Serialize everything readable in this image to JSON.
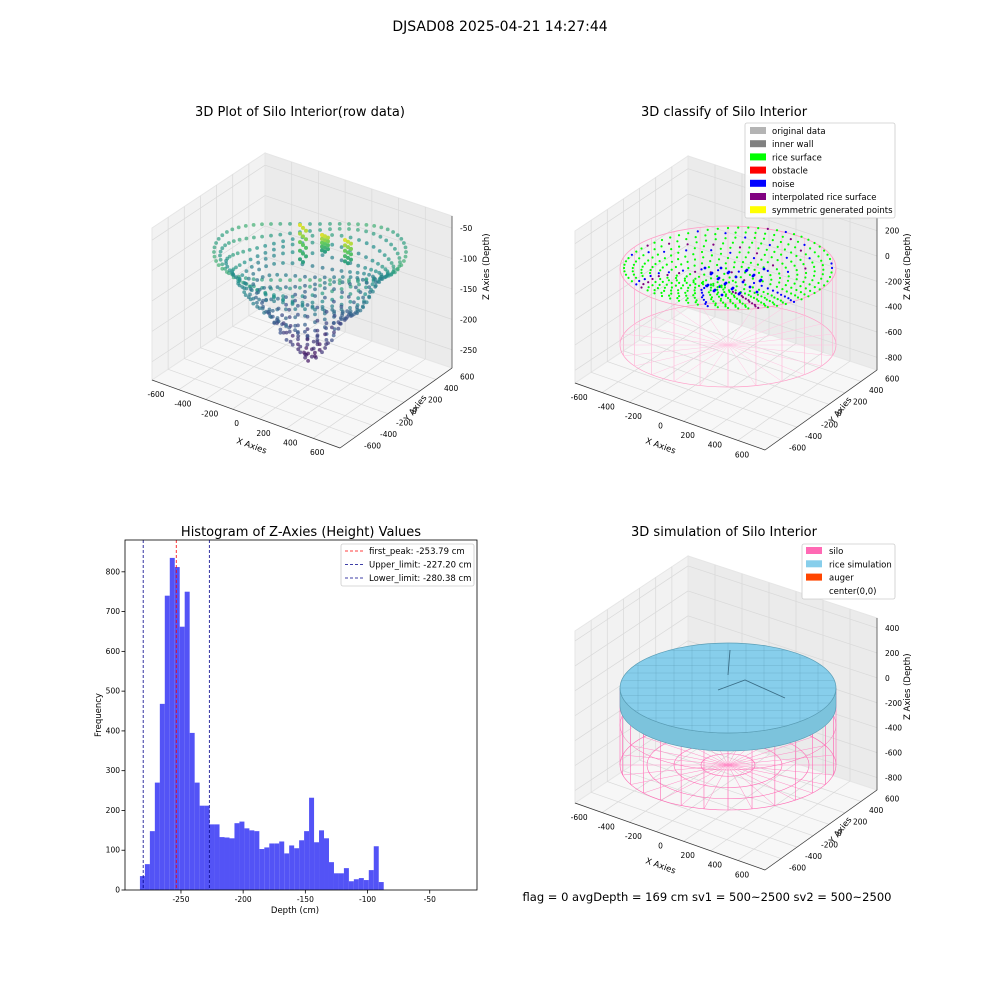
{
  "figure": {
    "suptitle": "DJSAD08 2025-04-21 14:27:44",
    "status_line": "flag = 0     avgDepth = 169 cm  sv1 = 500~2500  sv2 = 500~2500"
  },
  "chart_data": [
    {
      "type": "scatter",
      "subtype": "3d",
      "title": "3D Plot of Silo Interior(row data)",
      "xlabel": "X Axies",
      "ylabel": "Y Axies",
      "zlabel": "Z Axies (Depth)",
      "x_ticks": [
        -600,
        -400,
        -200,
        0,
        200,
        400,
        600
      ],
      "y_ticks": [
        -600,
        -400,
        -200,
        0,
        200,
        400,
        600
      ],
      "z_ticks": [
        -250,
        -200,
        -150,
        -100,
        -50
      ],
      "zlim": [
        -280,
        -30
      ],
      "colormap": "viridis"
    },
    {
      "type": "scatter",
      "subtype": "3d",
      "title": "3D classify of Silo Interior",
      "xlabel": "X Axies",
      "ylabel": "Y Axies",
      "zlabel": "Z Axies (Depth)",
      "x_ticks": [
        -600,
        -400,
        -200,
        0,
        200,
        400,
        600
      ],
      "y_ticks": [
        -600,
        -400,
        -200,
        0,
        200,
        400,
        600
      ],
      "z_ticks": [
        -800,
        -600,
        -400,
        -200,
        0,
        200
      ],
      "legend_position": "top-right",
      "legend": [
        {
          "label": "original data",
          "color": "#b4b4b4"
        },
        {
          "label": "inner wall",
          "color": "#808080"
        },
        {
          "label": "rice surface",
          "color": "#00ff00"
        },
        {
          "label": "obstacle",
          "color": "#ff0000"
        },
        {
          "label": "noise",
          "color": "#0000ff"
        },
        {
          "label": "interpolated rice surface",
          "color": "#800080"
        },
        {
          "label": "symmetric generated points",
          "color": "#ffff00"
        }
      ]
    },
    {
      "type": "bar",
      "subtype": "histogram",
      "title": "Histogram of Z-Axies (Height) Values",
      "xlabel": "Depth (cm)",
      "ylabel": "Frequency",
      "xlim": [
        -295,
        -12
      ],
      "ylim": [
        0,
        880
      ],
      "x_ticks": [
        -250,
        -200,
        -150,
        -100,
        -50
      ],
      "y_ticks": [
        0,
        100,
        200,
        300,
        400,
        500,
        600,
        700,
        800
      ],
      "bar_color": "#4a4af5",
      "bin_start": -283,
      "bin_width": 4,
      "values": [
        35,
        65,
        148,
        270,
        468,
        740,
        835,
        812,
        662,
        750,
        395,
        270,
        212,
        212,
        165,
        165,
        133,
        132,
        130,
        168,
        172,
        155,
        150,
        148,
        103,
        107,
        117,
        117,
        122,
        92,
        112,
        105,
        125,
        148,
        232,
        120,
        150,
        130,
        70,
        42,
        42,
        55,
        22,
        27,
        30,
        25,
        50,
        110,
        20
      ],
      "legend_position": "top-right",
      "reference_lines": [
        {
          "label": "first_peak: -253.79 cm",
          "x": -253.79,
          "color": "#ff0000"
        },
        {
          "label": "Upper_limit: -227.20 cm",
          "x": -227.2,
          "color": "#00008b"
        },
        {
          "label": "Lower_limit: -280.38 cm",
          "x": -280.38,
          "color": "#00008b"
        }
      ]
    },
    {
      "type": "area",
      "subtype": "3d-surface",
      "title": "3D simulation of Silo Interior",
      "xlabel": "X Axies",
      "ylabel": "Y Axies",
      "zlabel": "Z Axies (Depth)",
      "x_ticks": [
        -600,
        -400,
        -200,
        0,
        200,
        400,
        600
      ],
      "y_ticks": [
        -600,
        -400,
        -200,
        0,
        200,
        400,
        600
      ],
      "z_ticks": [
        -800,
        -600,
        -400,
        -200,
        0,
        200,
        400
      ],
      "legend_position": "top-right",
      "legend": [
        {
          "label": "silo",
          "color": "#ff69b4"
        },
        {
          "label": "rice simulation",
          "color": "#87ceeb"
        },
        {
          "label": "auger",
          "color": "#ff4500"
        },
        {
          "label": "center(0,0)",
          "color": "#ffffff"
        }
      ]
    }
  ]
}
